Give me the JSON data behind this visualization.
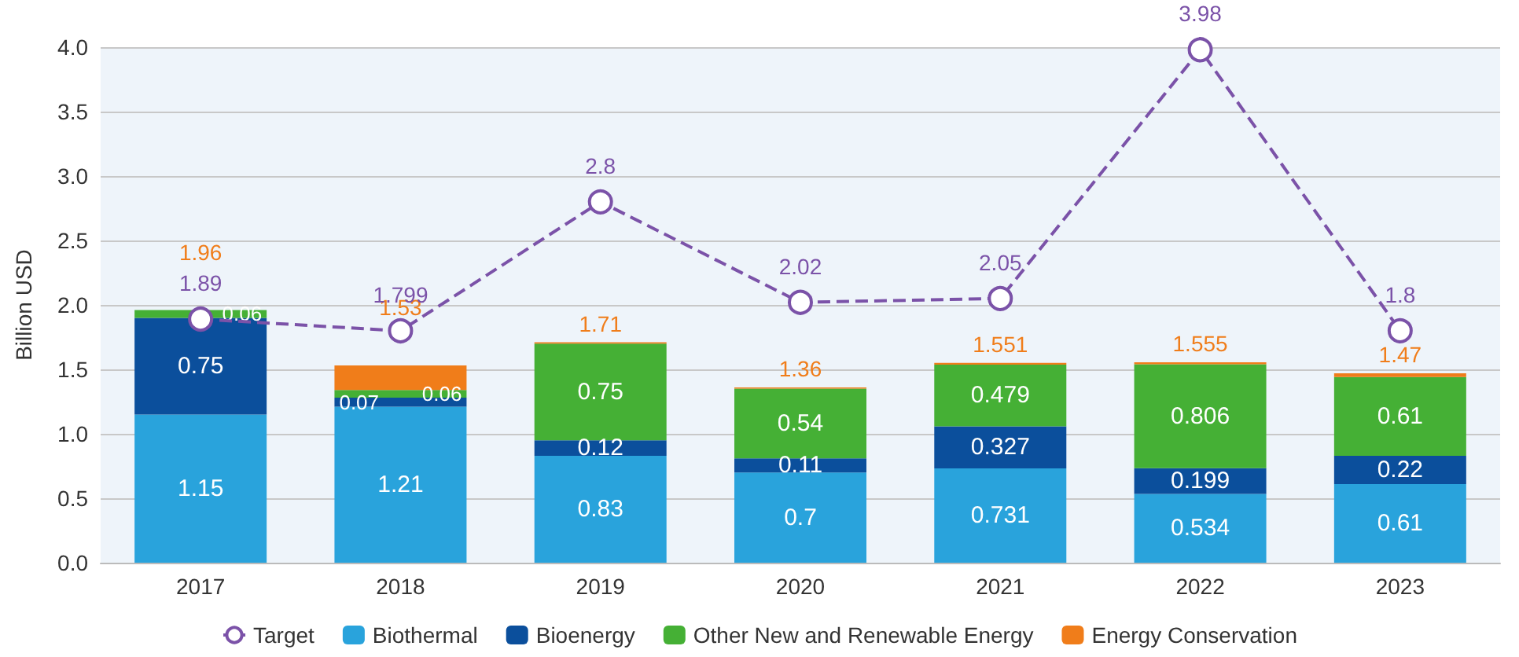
{
  "chart_data": {
    "type": "bar",
    "stacked": true,
    "ylabel": "Billion USD",
    "categories": [
      "2017",
      "2018",
      "2019",
      "2020",
      "2021",
      "2022",
      "2023"
    ],
    "series": [
      {
        "name": "Target",
        "type": "line",
        "color": "#7b52a8",
        "marker": "circle",
        "line_style": "dashed",
        "values": [
          1.89,
          1.799,
          2.8,
          2.02,
          2.05,
          3.98,
          1.8
        ],
        "value_labels": [
          "1.89",
          "1.799",
          "2.8",
          "2.02",
          "2.05",
          "3.98",
          "1.8"
        ]
      },
      {
        "name": "Biothermal",
        "color": "#29a3dc",
        "values": [
          1.15,
          1.21,
          0.83,
          0.7,
          0.731,
          0.534,
          0.61
        ],
        "value_labels": [
          "1.15",
          "1.21",
          "0.83",
          "0.7",
          "0.731",
          "0.534",
          "0.61"
        ]
      },
      {
        "name": "Bioenergy",
        "color": "#0b4f9c",
        "values": [
          0.75,
          0.07,
          0.12,
          0.11,
          0.327,
          0.199,
          0.22
        ],
        "value_labels": [
          "0.75",
          "0.07",
          "0.12",
          "0.11",
          "0.327",
          "0.199",
          "0.22"
        ]
      },
      {
        "name": "Other New and Renewable Energy",
        "color": "#45b035",
        "values": [
          0.06,
          0.06,
          0.75,
          0.54,
          0.479,
          0.806,
          0.61
        ],
        "value_labels": [
          "0.06",
          "0.06",
          "0.75",
          "0.54",
          "0.479",
          "0.806",
          "0.61"
        ]
      },
      {
        "name": "Energy Conservation",
        "color": "#f07d1a",
        "values": [
          0,
          0.19,
          0.01,
          0.01,
          0.014,
          0.016,
          0.03
        ]
      }
    ],
    "totals": [
      "1.96",
      "1.53",
      "1.71",
      "1.36",
      "1.551",
      "1.555",
      "1.47"
    ],
    "ylim": [
      0,
      4
    ],
    "yticks": [
      {
        "value": 0,
        "label": "0.0"
      },
      {
        "value": 0.5,
        "label": "0.5"
      },
      {
        "value": 1,
        "label": "1.0"
      },
      {
        "value": 1.5,
        "label": "1.5"
      },
      {
        "value": 2,
        "label": "2.0"
      },
      {
        "value": 2.5,
        "label": "2.5"
      },
      {
        "value": 3,
        "label": "3.0"
      },
      {
        "value": 3.5,
        "label": "3.5"
      },
      {
        "value": 4,
        "label": "4.0"
      }
    ],
    "grid": "y",
    "legend": "bottom"
  }
}
